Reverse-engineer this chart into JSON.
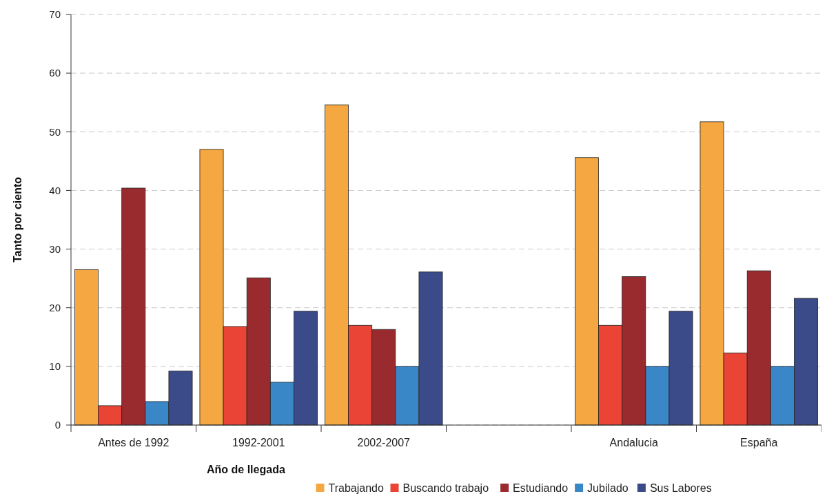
{
  "chart_data": {
    "type": "bar",
    "xlabel": "Año de llegada",
    "ylabel": "Tanto por ciento",
    "categories": [
      "Antes de 1992",
      "1992-2001",
      "2002-2007",
      null,
      "Andalucia",
      "España"
    ],
    "series": [
      {
        "name": "Trabajando",
        "color": "#f5a742",
        "values": [
          26.5,
          47.0,
          54.6,
          null,
          45.6,
          51.7
        ]
      },
      {
        "name": "Buscando trabajo",
        "color": "#e94435",
        "values": [
          3.3,
          16.8,
          17.0,
          null,
          17.0,
          12.3
        ]
      },
      {
        "name": "Estudiando",
        "color": "#992a2e",
        "values": [
          40.4,
          25.1,
          16.3,
          null,
          25.3,
          26.3
        ]
      },
      {
        "name": "Jubilado",
        "color": "#3a87c8",
        "values": [
          4.0,
          7.3,
          10.0,
          null,
          10.0,
          10.0
        ]
      },
      {
        "name": "Sus Labores",
        "color": "#3b4b8a",
        "values": [
          9.2,
          19.4,
          26.1,
          null,
          19.4,
          21.6
        ]
      }
    ],
    "ylim": [
      0,
      70
    ],
    "yticks": [
      0,
      10,
      20,
      30,
      40,
      50,
      60,
      70
    ],
    "grid": "y",
    "legend": "bottom"
  }
}
